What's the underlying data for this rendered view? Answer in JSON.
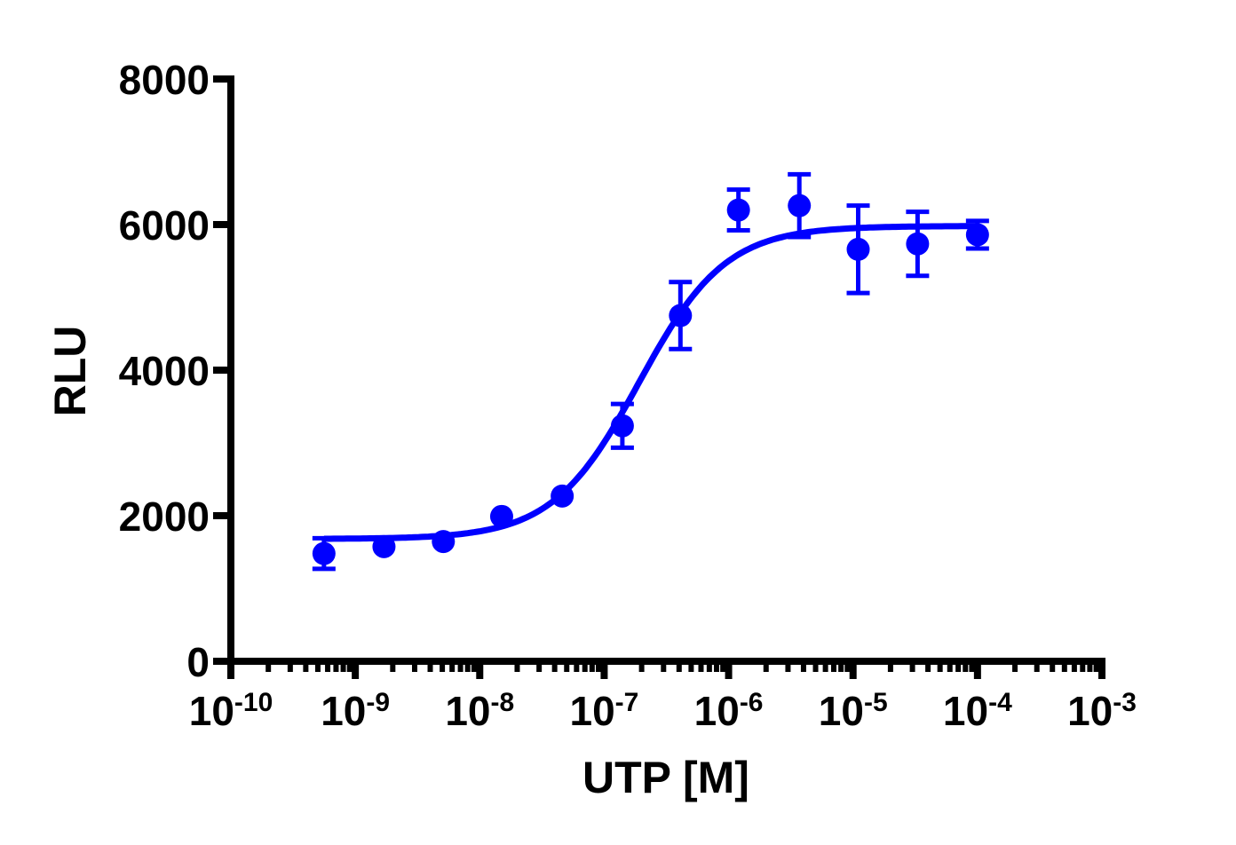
{
  "chart_data": {
    "type": "scatter",
    "title": "",
    "xlabel": "UTP [M]",
    "ylabel": "RLU",
    "x_scale": "log10",
    "xlim": [
      1e-10,
      0.001
    ],
    "ylim": [
      0,
      8000
    ],
    "x_ticks": [
      {
        "base": "10",
        "exp": "-10"
      },
      {
        "base": "10",
        "exp": "-9"
      },
      {
        "base": "10",
        "exp": "-8"
      },
      {
        "base": "10",
        "exp": "-7"
      },
      {
        "base": "10",
        "exp": "-6"
      },
      {
        "base": "10",
        "exp": "-5"
      },
      {
        "base": "10",
        "exp": "-4"
      },
      {
        "base": "10",
        "exp": "-3"
      }
    ],
    "y_ticks": [
      "0",
      "2000",
      "4000",
      "6000",
      "8000"
    ],
    "grid": false,
    "color": "#0000ff",
    "series": [
      {
        "marker": "circle",
        "points": [
          {
            "x": 5.6e-10,
            "y": 1480,
            "err": 210
          },
          {
            "x": 1.7e-09,
            "y": 1575,
            "err": 0
          },
          {
            "x": 5.1e-09,
            "y": 1645,
            "err": 0
          },
          {
            "x": 1.5e-08,
            "y": 1990,
            "err": 0
          },
          {
            "x": 4.6e-08,
            "y": 2270,
            "err": 0
          },
          {
            "x": 1.4e-07,
            "y": 3235,
            "err": 300
          },
          {
            "x": 4.1e-07,
            "y": 4750,
            "err": 460
          },
          {
            "x": 1.2e-06,
            "y": 6200,
            "err": 280
          },
          {
            "x": 3.7e-06,
            "y": 6260,
            "err": 430
          },
          {
            "x": 1.1e-05,
            "y": 5660,
            "err": 600
          },
          {
            "x": 3.3e-05,
            "y": 5735,
            "err": 440
          },
          {
            "x": 0.0001,
            "y": 5860,
            "err": 190
          }
        ],
        "fit": "sigmoidal dose-response curve"
      }
    ]
  }
}
